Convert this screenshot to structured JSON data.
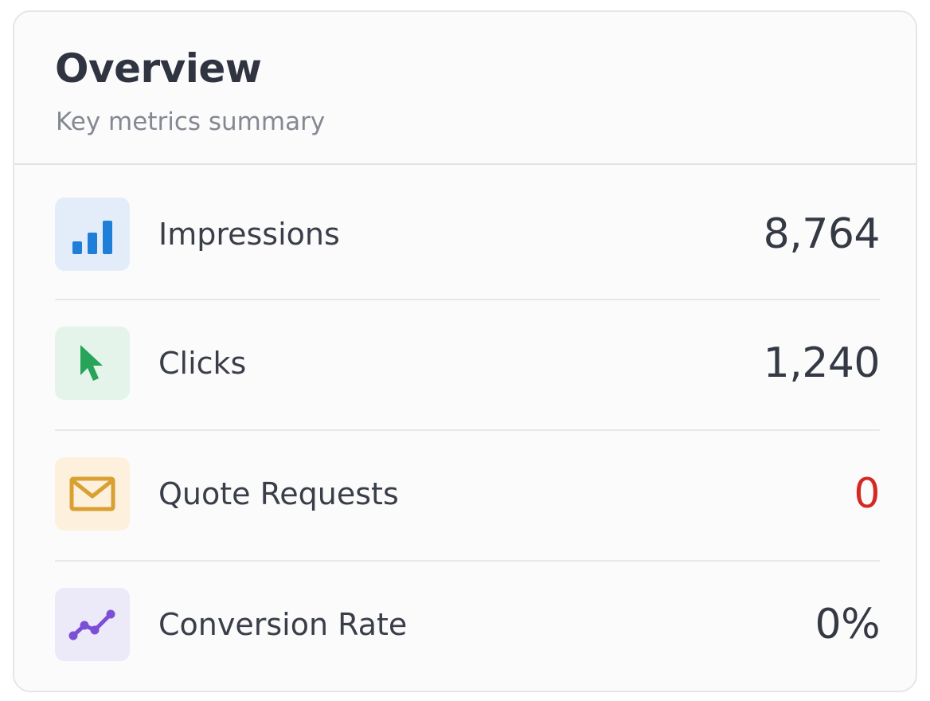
{
  "header": {
    "title": "Overview",
    "subtitle": "Key metrics summary"
  },
  "metrics": [
    {
      "label": "Impressions",
      "value": "8,764",
      "icon": "bar-chart-icon",
      "color": "#1f7ed8"
    },
    {
      "label": "Clicks",
      "value": "1,240",
      "icon": "cursor-icon",
      "color": "#27a35a"
    },
    {
      "label": "Quote Requests",
      "value": "0",
      "icon": "envelope-icon",
      "color": "#d9a032",
      "value_color": "#d42a22"
    },
    {
      "label": "Conversion Rate",
      "value": "0%",
      "icon": "trend-line-icon",
      "color": "#7b4fd6"
    }
  ]
}
